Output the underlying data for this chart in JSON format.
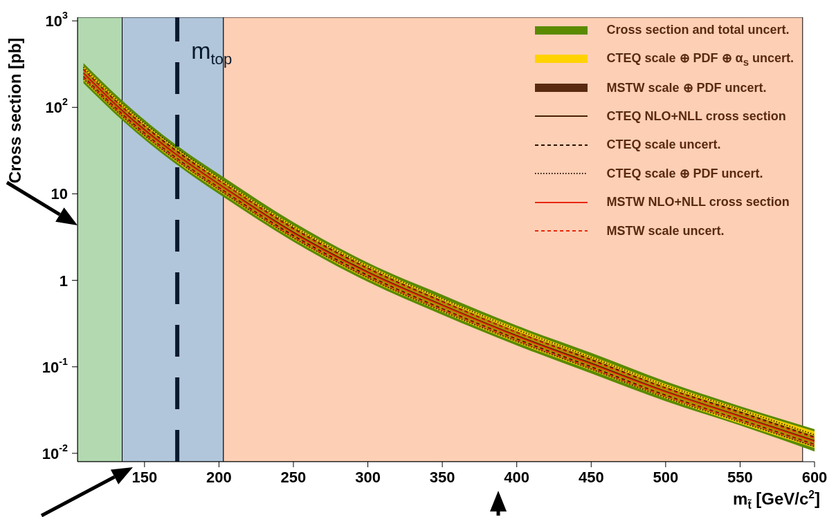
{
  "chart_data": {
    "type": "line",
    "xlabel": "m$_{t̃}$ [GeV/c$^{2}$]",
    "ylabel": "Cross section [pb]",
    "log": true,
    "legend": "top right",
    "x": [
      109,
      135,
      172,
      203,
      250,
      300,
      350,
      400,
      450,
      500,
      550,
      600
    ],
    "xlim": [
      105,
      600
    ],
    "xticks": [
      150,
      200,
      250,
      300,
      350,
      400,
      450,
      500,
      550,
      600
    ],
    "ylim": [
      0.008,
      1100
    ],
    "yticks": [
      {
        "value": 0.01,
        "label": "10$^{-2}$"
      },
      {
        "value": 0.1,
        "label": "10$^{-1}$"
      },
      1,
      10,
      {
        "value": 100,
        "label": "10$^{2}$"
      },
      {
        "value": 1000,
        "label": "10$^{3}$"
      }
    ],
    "bands": [
      {
        "axis": "x",
        "from": 105,
        "to": 135,
        "color": "#b3d9b1"
      },
      {
        "axis": "x",
        "from": 135,
        "to": 203,
        "color": "#b1c6da"
      },
      {
        "axis": "x",
        "from": 203,
        "to": 592,
        "color": "#fdcfb5"
      }
    ],
    "ref_lines": [
      {
        "axis": "x",
        "value": 172,
        "label": "m$_{top}$",
        "color": "#0a1a2e",
        "line_style": "dashed"
      }
    ],
    "series": [
      {
        "name": "Cross section and total uncert.",
        "type": "line",
        "color": "#5a8a00",
        "values": [
          null,
          null,
          null,
          null,
          null,
          null,
          null,
          null,
          null,
          null,
          null,
          null
        ],
        "lower": [
          190,
          71,
          21.5,
          9.2,
          2.8,
          0.96,
          0.4,
          0.177,
          0.084,
          0.04,
          0.021,
          0.0105
        ],
        "upper": [
          325,
          120,
          36,
          15.6,
          4.7,
          1.6,
          0.68,
          0.3,
          0.145,
          0.068,
          0.035,
          0.019
        ]
      },
      {
        "name": "CTEQ scale ⊕ PDF ⊕ α$_{s}$ uncert.",
        "type": "line",
        "color": "#ffd200",
        "values": [
          null,
          null,
          null,
          null,
          null,
          null,
          null,
          null,
          null,
          null,
          null,
          null
        ],
        "lower": [
          205,
          76,
          23,
          9.9,
          3,
          1.03,
          0.43,
          0.19,
          0.091,
          0.043,
          0.022,
          0.0115
        ],
        "upper": [
          300,
          110,
          33,
          14.2,
          4.3,
          1.5,
          0.62,
          0.28,
          0.133,
          0.063,
          0.033,
          0.018
        ]
      },
      {
        "name": "MSTW scale ⊕ PDF uncert.",
        "type": "line",
        "color": "#5a2a10",
        "values": [
          null,
          null,
          null,
          null,
          null,
          null,
          null,
          null,
          null,
          null,
          null,
          null
        ],
        "lower": [
          210,
          77,
          23.5,
          10.1,
          3.05,
          1.05,
          0.44,
          0.195,
          0.093,
          0.044,
          0.023,
          0.0118
        ],
        "upper": [
          285,
          105,
          32,
          13.6,
          4.1,
          1.42,
          0.59,
          0.26,
          0.126,
          0.059,
          0.031,
          0.016
        ]
      },
      {
        "name": "CTEQ NLO+NLL cross section",
        "type": "line",
        "color": "#4a1e00",
        "line_style": "solid",
        "values": [
          250,
          92,
          28,
          12,
          3.6,
          1.25,
          0.52,
          0.23,
          0.11,
          0.052,
          0.027,
          0.014
        ]
      },
      {
        "name": "CTEQ scale uncert.",
        "type": "line",
        "color": "#2a1000",
        "line_style": "dashed",
        "values": [
          275,
          101,
          31,
          13.2,
          4,
          1.38,
          0.57,
          0.25,
          0.121,
          0.057,
          0.03,
          0.0154
        ]
      },
      {
        "type": "line",
        "color": "#2a1000",
        "line_style": "dashed",
        "values": [
          227,
          84,
          25.5,
          10.9,
          3.3,
          1.14,
          0.47,
          0.21,
          0.1,
          0.047,
          0.0245,
          0.0127
        ]
      },
      {
        "name": "CTEQ scale ⊕ PDF uncert.",
        "type": "line",
        "color": "#2a1000",
        "line_style": "dotted",
        "values": [
          292,
          108,
          33,
          14,
          4.2,
          1.46,
          0.61,
          0.27,
          0.129,
          0.061,
          0.032,
          0.0164
        ]
      },
      {
        "type": "line",
        "color": "#2a1000",
        "line_style": "dotted",
        "values": [
          214,
          79,
          24,
          10.3,
          3.1,
          1.07,
          0.44,
          0.197,
          0.094,
          0.044,
          0.023,
          0.012
        ]
      },
      {
        "name": "MSTW NLO+NLL cross section",
        "type": "line",
        "color": "#e8260c",
        "line_style": "solid",
        "values": [
          245,
          90,
          27.5,
          11.8,
          3.5,
          1.22,
          0.51,
          0.225,
          0.107,
          0.051,
          0.0265,
          0.0137
        ]
      },
      {
        "name": "MSTW scale uncert.",
        "type": "line",
        "color": "#e8260c",
        "line_style": "dashed",
        "values": [
          270,
          99,
          30,
          13,
          3.9,
          1.35,
          0.56,
          0.248,
          0.118,
          0.056,
          0.029,
          0.015
        ]
      },
      {
        "type": "line",
        "color": "#e8260c",
        "line_style": "dashed",
        "values": [
          222,
          82,
          25,
          10.7,
          3.2,
          1.11,
          0.46,
          0.205,
          0.097,
          0.046,
          0.024,
          0.0125
        ]
      }
    ]
  }
}
